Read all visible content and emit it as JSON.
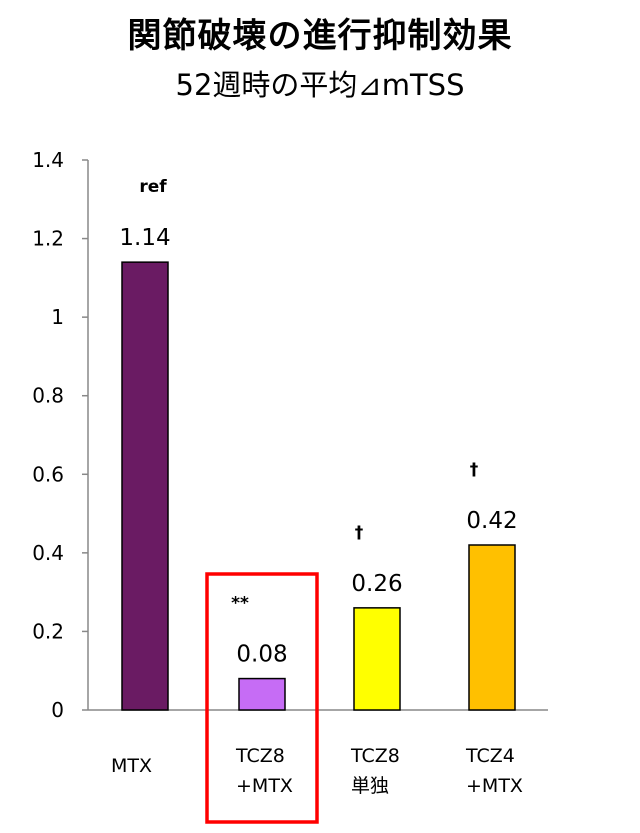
{
  "title": "関節破壊の進行抑制効果",
  "subtitle": "52週時の平均⊿mTSS",
  "chart_data": {
    "type": "bar",
    "title": "関節破壊の進行抑制効果",
    "subtitle": "52週時の平均⊿mTSS",
    "xlabel": "",
    "ylabel": "",
    "ylim": [
      0,
      1.4
    ],
    "yticks": [
      "0",
      "0.2",
      "0.4",
      "0.6",
      "0.8",
      "1",
      "1.2",
      "1.4"
    ],
    "grid": false,
    "categories": [
      {
        "lines": [
          "MTX"
        ]
      },
      {
        "lines": [
          "TCZ8",
          "+MTX"
        ]
      },
      {
        "lines": [
          "TCZ8",
          "単独"
        ]
      },
      {
        "lines": [
          "TCZ4",
          "+MTX"
        ]
      }
    ],
    "values": [
      1.14,
      0.08,
      0.26,
      0.42
    ],
    "value_labels": [
      "1.14",
      "0.08",
      "0.26",
      "0.42"
    ],
    "significance": [
      "ref",
      "**",
      "†",
      "†"
    ],
    "colors": [
      "#6a1b63",
      "#c66cf5",
      "#ffff00",
      "#ffc000"
    ],
    "highlight": {
      "category_index": 1,
      "color": "#ff0000"
    }
  }
}
